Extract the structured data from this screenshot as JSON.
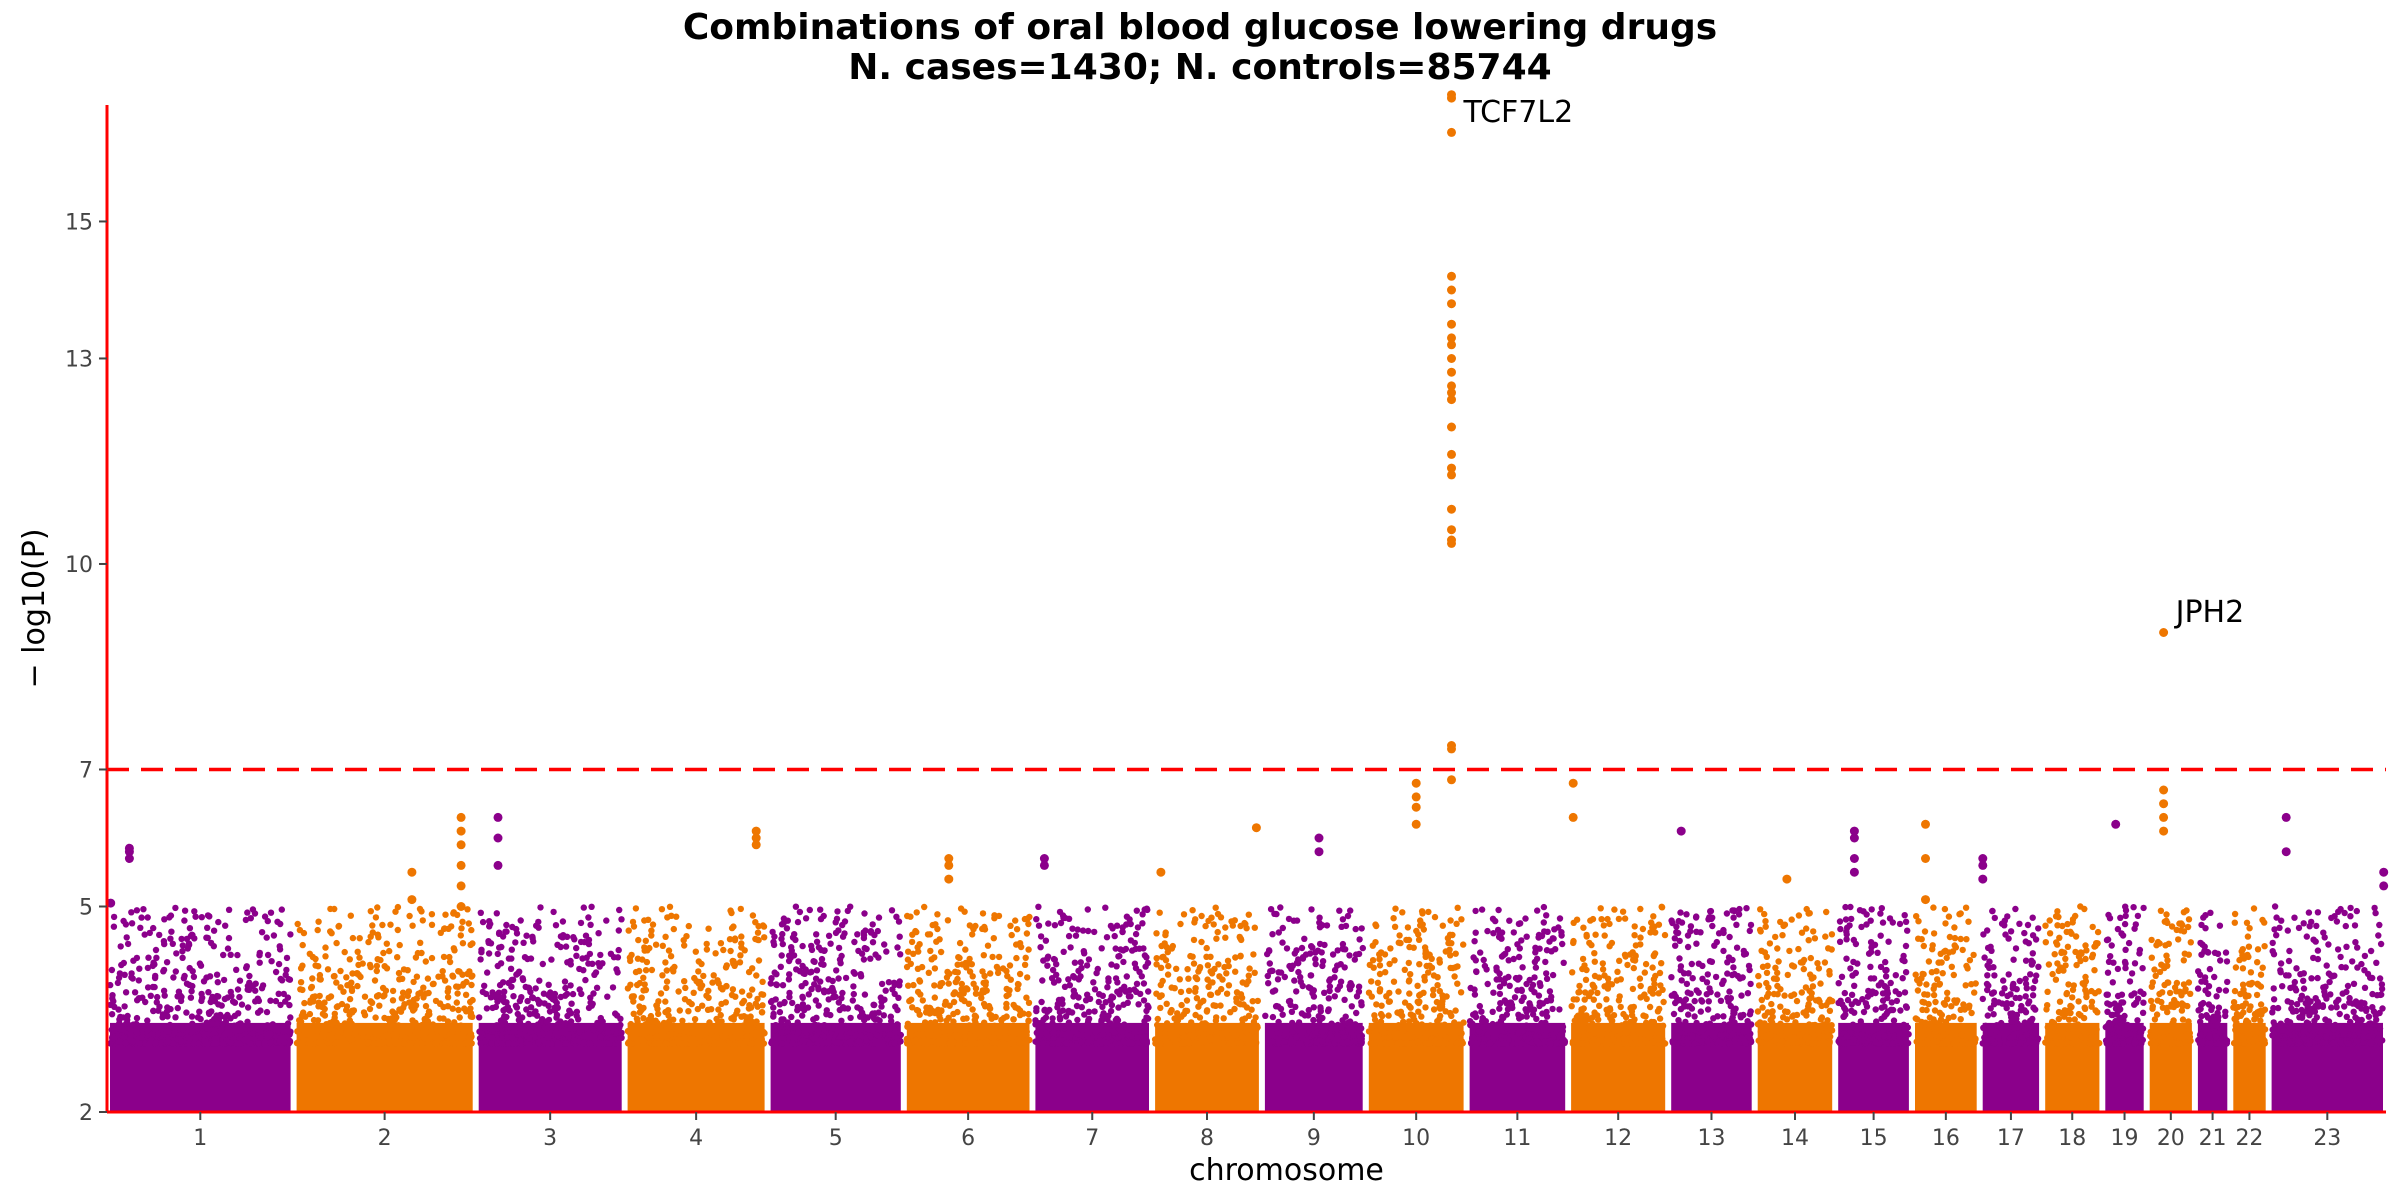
{
  "chart_data": {
    "type": "scatter",
    "subtype": "manhattan",
    "title": [
      "Combinations of oral blood glucose lowering drugs",
      "N. cases=1430; N. controls=85744"
    ],
    "xlabel": "chromosome",
    "ylabel": "− log10(P)",
    "ylim": [
      2,
      16.7
    ],
    "yticks": [
      2,
      5,
      7,
      10,
      13,
      15
    ],
    "threshold": 7,
    "threshold_color": "#ff0000",
    "axis_color": "#ff0000",
    "grid": false,
    "colors": {
      "odd": "#8b008b",
      "even": "#ee7600"
    },
    "chromosomes": [
      {
        "label": "1",
        "start": 0,
        "end": 248
      },
      {
        "label": "2",
        "start": 248,
        "end": 490
      },
      {
        "label": "3",
        "start": 490,
        "end": 688
      },
      {
        "label": "4",
        "start": 688,
        "end": 878
      },
      {
        "label": "5",
        "start": 878,
        "end": 1059
      },
      {
        "label": "6",
        "start": 1059,
        "end": 1230
      },
      {
        "label": "7",
        "start": 1230,
        "end": 1389
      },
      {
        "label": "8",
        "start": 1389,
        "end": 1535
      },
      {
        "label": "9",
        "start": 1535,
        "end": 1673
      },
      {
        "label": "10",
        "start": 1673,
        "end": 1807
      },
      {
        "label": "11",
        "start": 1807,
        "end": 1942
      },
      {
        "label": "12",
        "start": 1942,
        "end": 2075
      },
      {
        "label": "13",
        "start": 2075,
        "end": 2190
      },
      {
        "label": "14",
        "start": 2190,
        "end": 2297
      },
      {
        "label": "15",
        "start": 2297,
        "end": 2399
      },
      {
        "label": "16",
        "start": 2399,
        "end": 2489
      },
      {
        "label": "17",
        "start": 2489,
        "end": 2572
      },
      {
        "label": "18",
        "start": 2572,
        "end": 2652
      },
      {
        "label": "19",
        "start": 2652,
        "end": 2711
      },
      {
        "label": "20",
        "start": 2711,
        "end": 2775
      },
      {
        "label": "21",
        "start": 2775,
        "end": 2822
      },
      {
        "label": "22",
        "start": 2822,
        "end": 2873
      },
      {
        "label": "23",
        "start": 2873,
        "end": 3029
      }
    ],
    "peaks": [
      {
        "chr": "1",
        "pos": 0.02,
        "values": [
          5.05
        ]
      },
      {
        "chr": "1",
        "pos": 0.12,
        "values": [
          5.7,
          5.8,
          5.85
        ]
      },
      {
        "chr": "2",
        "pos": 0.92,
        "values": [
          5.0,
          5.3,
          5.6,
          5.9,
          6.1,
          6.3
        ]
      },
      {
        "chr": "2",
        "pos": 0.65,
        "values": [
          5.1,
          5.5
        ]
      },
      {
        "chr": "3",
        "pos": 0.15,
        "values": [
          5.6,
          6.0,
          6.3
        ]
      },
      {
        "chr": "4",
        "pos": 0.92,
        "values": [
          5.9,
          6.0,
          6.1
        ]
      },
      {
        "chr": "6",
        "pos": 0.35,
        "values": [
          5.4,
          5.6,
          5.7
        ]
      },
      {
        "chr": "7",
        "pos": 0.1,
        "values": [
          5.6,
          5.7
        ]
      },
      {
        "chr": "8",
        "pos": 0.08,
        "values": [
          5.5
        ]
      },
      {
        "chr": "8",
        "pos": 0.95,
        "values": [
          6.15
        ]
      },
      {
        "chr": "9",
        "pos": 0.55,
        "values": [
          5.8,
          6.0
        ]
      },
      {
        "chr": "10",
        "pos": 0.5,
        "values": [
          6.2,
          6.45,
          6.6,
          6.8
        ]
      },
      {
        "chr": "10",
        "pos": 0.85,
        "values": [
          6.85,
          7.3,
          7.35,
          10.3,
          10.35,
          10.5,
          10.8,
          11.3,
          11.4,
          11.6,
          12.0,
          12.4,
          12.5,
          12.6,
          12.8,
          13.0,
          13.2,
          13.3,
          13.5,
          13.8,
          14.0,
          14.2,
          16.3,
          16.8,
          16.85
        ]
      },
      {
        "chr": "12",
        "pos": 0.05,
        "values": [
          6.3,
          6.8
        ]
      },
      {
        "chr": "13",
        "pos": 0.15,
        "values": [
          6.1
        ]
      },
      {
        "chr": "14",
        "pos": 0.4,
        "values": [
          5.4
        ]
      },
      {
        "chr": "15",
        "pos": 0.25,
        "values": [
          5.5,
          5.7,
          6.0,
          6.1
        ]
      },
      {
        "chr": "16",
        "pos": 0.2,
        "values": [
          5.1,
          5.7,
          6.2
        ]
      },
      {
        "chr": "17",
        "pos": 0.05,
        "values": [
          5.4,
          5.6,
          5.7
        ]
      },
      {
        "chr": "19",
        "pos": 0.3,
        "values": [
          6.2
        ]
      },
      {
        "chr": "20",
        "pos": 0.35,
        "values": [
          6.1,
          6.3,
          6.5,
          6.7,
          9.0
        ]
      },
      {
        "chr": "23",
        "pos": 0.15,
        "values": [
          5.8,
          6.3
        ]
      },
      {
        "chr": "23",
        "pos": 0.98,
        "values": [
          5.3,
          5.5
        ]
      }
    ],
    "annotations": [
      {
        "text": "TCF7L2",
        "chr": "10",
        "pos": 0.85,
        "y": 16.6
      },
      {
        "text": "JPH2",
        "chr": "20",
        "pos": 0.35,
        "y": 9.3
      }
    ]
  }
}
